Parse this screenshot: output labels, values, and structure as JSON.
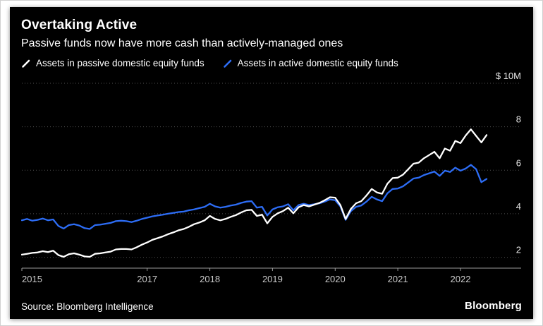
{
  "header": {
    "title": "Overtaking Active",
    "subtitle": "Passive funds now have more cash than actively-managed ones"
  },
  "footer": {
    "source": "Source: Bloomberg Intelligence",
    "logo": "Bloomberg"
  },
  "chart_data": {
    "type": "line",
    "title": "Overtaking Active",
    "subtitle": "Passive funds now have more cash than actively-managed ones",
    "unit_label": "$ 10M",
    "x_unit": "month",
    "x_range": [
      "2015-01",
      "2022-06"
    ],
    "xtick_years": [
      2015,
      2017,
      2018,
      2019,
      2020,
      2021,
      2022
    ],
    "ylim": [
      1.5,
      10
    ],
    "yticks": [
      2,
      4,
      6,
      8,
      10
    ],
    "grid": "dotted-horizontal",
    "legend_position": "top",
    "colors": {
      "background": "#000000",
      "grid": "#4f4f4f",
      "axis": "#9a9a9a",
      "tick_text": "#c9c9c9",
      "value_text": "#e6e6e6"
    },
    "series": [
      {
        "name": "Assets in passive domestic equity funds",
        "color": "#ffffff",
        "values": [
          2.12,
          2.16,
          2.2,
          2.22,
          2.28,
          2.24,
          2.3,
          2.1,
          2.02,
          2.14,
          2.18,
          2.12,
          2.04,
          2.02,
          2.16,
          2.18,
          2.22,
          2.26,
          2.36,
          2.38,
          2.38,
          2.36,
          2.46,
          2.58,
          2.68,
          2.8,
          2.88,
          2.96,
          3.06,
          3.14,
          3.24,
          3.3,
          3.4,
          3.52,
          3.6,
          3.7,
          3.9,
          3.76,
          3.7,
          3.76,
          3.86,
          3.94,
          4.06,
          4.16,
          4.18,
          3.9,
          3.96,
          3.56,
          3.86,
          4.02,
          4.12,
          4.28,
          4.02,
          4.3,
          4.4,
          4.34,
          4.42,
          4.5,
          4.62,
          4.76,
          4.74,
          4.4,
          3.76,
          4.22,
          4.48,
          4.58,
          4.84,
          5.14,
          4.98,
          4.92,
          5.38,
          5.64,
          5.66,
          5.8,
          6.05,
          6.3,
          6.35,
          6.55,
          6.7,
          6.85,
          6.55,
          7.0,
          6.9,
          7.35,
          7.25,
          7.6,
          7.88,
          7.58,
          7.28,
          7.62
        ]
      },
      {
        "name": "Assets in active domestic equity funds",
        "color": "#2d6df6",
        "values": [
          3.7,
          3.76,
          3.68,
          3.72,
          3.78,
          3.7,
          3.74,
          3.44,
          3.32,
          3.48,
          3.52,
          3.46,
          3.34,
          3.3,
          3.48,
          3.5,
          3.54,
          3.58,
          3.66,
          3.68,
          3.66,
          3.62,
          3.68,
          3.76,
          3.82,
          3.88,
          3.92,
          3.96,
          4.0,
          4.04,
          4.08,
          4.1,
          4.16,
          4.2,
          4.26,
          4.32,
          4.46,
          4.34,
          4.28,
          4.32,
          4.38,
          4.42,
          4.5,
          4.56,
          4.58,
          4.28,
          4.32,
          3.92,
          4.2,
          4.3,
          4.34,
          4.44,
          4.16,
          4.4,
          4.46,
          4.4,
          4.44,
          4.48,
          4.56,
          4.66,
          4.62,
          4.34,
          3.72,
          4.12,
          4.32,
          4.38,
          4.56,
          4.78,
          4.66,
          4.58,
          4.94,
          5.14,
          5.16,
          5.26,
          5.44,
          5.62,
          5.66,
          5.78,
          5.86,
          5.94,
          5.74,
          5.98,
          5.92,
          6.12,
          5.98,
          6.08,
          6.25,
          6.05,
          5.45,
          5.6
        ]
      }
    ]
  }
}
